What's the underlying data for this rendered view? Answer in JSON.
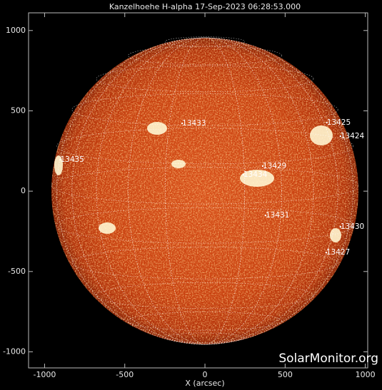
{
  "chart_data": {
    "type": "image",
    "title": "Kanzelhoehe H-alpha 17-Sep-2023 06:28:53.000",
    "xlabel": "X (arcsec)",
    "xlim": [
      -1100,
      1015
    ],
    "ylim": [
      -1100,
      1110
    ],
    "xticks": [
      -1000,
      -500,
      0,
      500,
      1000
    ],
    "yticks": [
      -1000,
      -500,
      0,
      500,
      1000
    ],
    "regions": [
      {
        "label": "13433",
        "x": -142,
        "y": 422
      },
      {
        "label": "13425",
        "x": 760,
        "y": 427
      },
      {
        "label": "13424",
        "x": 845,
        "y": 342
      },
      {
        "label": "13435",
        "x": -902,
        "y": 196
      },
      {
        "label": "13429",
        "x": 360,
        "y": 156
      },
      {
        "label": "13434",
        "x": 240,
        "y": 102
      },
      {
        "label": "13431",
        "x": 378,
        "y": -151
      },
      {
        "label": "13430",
        "x": 845,
        "y": -222
      },
      {
        "label": "13427",
        "x": 756,
        "y": -382
      }
    ],
    "watermark": "SolarMonitor.org"
  }
}
